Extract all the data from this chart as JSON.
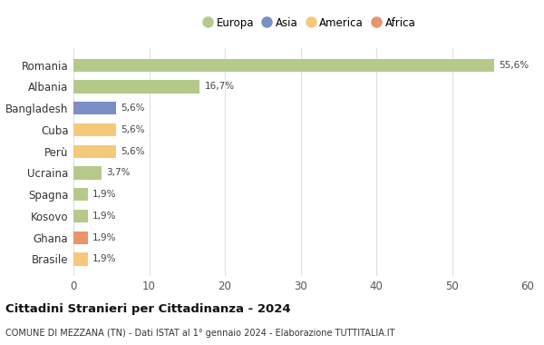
{
  "categories": [
    "Romania",
    "Albania",
    "Bangladesh",
    "Cuba",
    "Perù",
    "Ucraina",
    "Spagna",
    "Kosovo",
    "Ghana",
    "Brasile"
  ],
  "values": [
    55.6,
    16.7,
    5.6,
    5.6,
    5.6,
    3.7,
    1.9,
    1.9,
    1.9,
    1.9
  ],
  "labels": [
    "55,6%",
    "16,7%",
    "5,6%",
    "5,6%",
    "5,6%",
    "3,7%",
    "1,9%",
    "1,9%",
    "1,9%",
    "1,9%"
  ],
  "colors": [
    "#b5c98a",
    "#b5c98a",
    "#7b8fc7",
    "#f5c97a",
    "#f5c97a",
    "#b5c98a",
    "#b5c98a",
    "#b5c98a",
    "#e8956d",
    "#f5c97a"
  ],
  "legend_labels": [
    "Europa",
    "Asia",
    "America",
    "Africa"
  ],
  "legend_colors": [
    "#b5c98a",
    "#7b8fc7",
    "#f5c97a",
    "#e8956d"
  ],
  "title": "Cittadini Stranieri per Cittadinanza - 2024",
  "subtitle": "COMUNE DI MEZZANA (TN) - Dati ISTAT al 1° gennaio 2024 - Elaborazione TUTTITALIA.IT",
  "xlim": [
    0,
    60
  ],
  "xticks": [
    0,
    10,
    20,
    30,
    40,
    50,
    60
  ],
  "bg_color": "#ffffff",
  "grid_color": "#e0e0e0",
  "bar_height": 0.6
}
